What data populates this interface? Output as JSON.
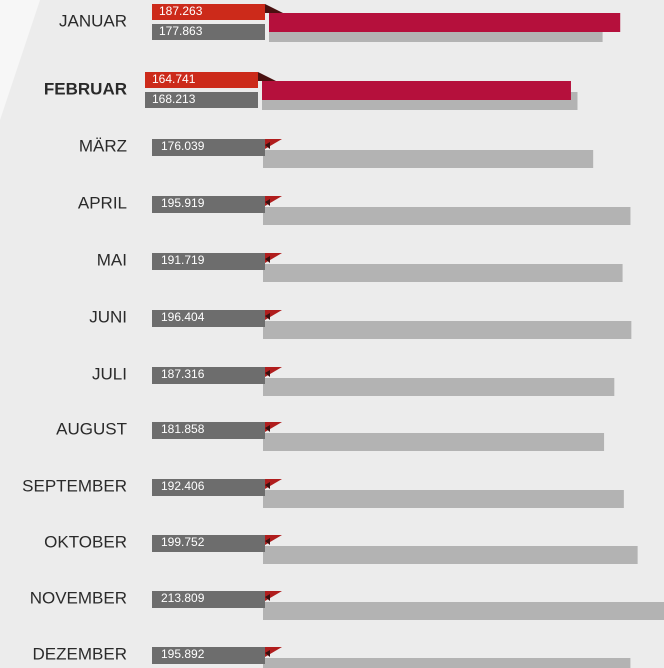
{
  "chart_data": {
    "type": "bar",
    "categories": [
      "JANUAR",
      "FEBRUAR",
      "MÄRZ",
      "APRIL",
      "MAI",
      "JUNI",
      "JULI",
      "AUGUST",
      "SEPTEMBER",
      "OKTOBER",
      "NOVEMBER",
      "DEZEMBER"
    ],
    "series": [
      {
        "color": "#b5103c",
        "label_color": "#cc2a1a",
        "values": [
          187263,
          164741,
          null,
          null,
          null,
          null,
          null,
          null,
          null,
          null,
          null,
          null
        ],
        "value_labels": [
          "187.263",
          "164.741",
          null,
          null,
          null,
          null,
          null,
          null,
          null,
          null,
          null,
          null
        ]
      },
      {
        "color": "#b3b3b3",
        "label_color": "#6d6d6d",
        "values": [
          177863,
          168213,
          176039,
          195919,
          191719,
          196404,
          187316,
          181858,
          192406,
          199752,
          213809,
          195892
        ],
        "value_labels": [
          "177.863",
          "168.213",
          "176.039",
          "195.919",
          "191.719",
          "196.404",
          "187.316",
          "181.858",
          "192.406",
          "199.752",
          "213.809",
          "195.892"
        ]
      }
    ]
  }
}
